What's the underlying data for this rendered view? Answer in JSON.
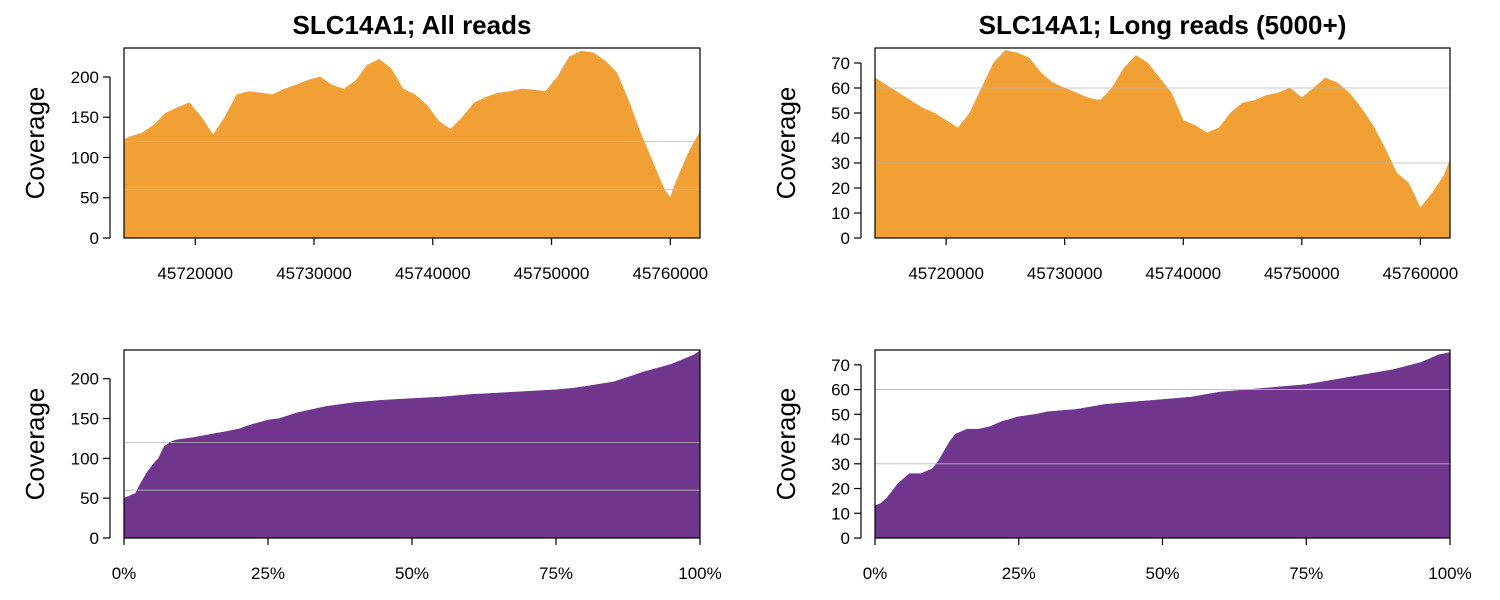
{
  "colors": {
    "coverage_area": "#F0A035",
    "sorted_area": "#70368D",
    "grid": "#b8b8b8"
  },
  "chart_data": [
    {
      "id": "top-left",
      "type": "area",
      "title": "SLC14A1; All reads",
      "ylabel": "Coverage",
      "xlabel": "",
      "xlim": [
        45714000,
        45762500
      ],
      "ylim": [
        0,
        236
      ],
      "x_ticks": [
        45720000,
        45730000,
        45740000,
        45750000,
        45760000
      ],
      "x_tick_labels": [
        "45720000",
        "45730000",
        "45740000",
        "45750000",
        "45760000"
      ],
      "y_ticks": [
        0,
        50,
        100,
        150,
        200
      ],
      "y_tick_labels": [
        "0",
        "50",
        "100",
        "150",
        "200"
      ],
      "gridlines_y": [
        60,
        120
      ],
      "color": "#F0A035",
      "x": [
        45714000,
        45714500,
        45715500,
        45716500,
        45717500,
        45718500,
        45719500,
        45720500,
        45721500,
        45722500,
        45723500,
        45724500,
        45725500,
        45726500,
        45727500,
        45728500,
        45729500,
        45730500,
        45731500,
        45732500,
        45733500,
        45734500,
        45735500,
        45736500,
        45737500,
        45738500,
        45739500,
        45740500,
        45741500,
        45742500,
        45743500,
        45744500,
        45745500,
        45746500,
        45747500,
        45748500,
        45749500,
        45750500,
        45751500,
        45752500,
        45753500,
        45754500,
        45755500,
        45756500,
        45757500,
        45758500,
        45759500,
        45760000,
        45760500,
        45761500,
        45762500
      ],
      "y": [
        122,
        126,
        130,
        140,
        155,
        162,
        168,
        150,
        128,
        150,
        178,
        182,
        180,
        178,
        185,
        190,
        196,
        200,
        190,
        185,
        195,
        215,
        222,
        210,
        185,
        178,
        165,
        145,
        135,
        150,
        168,
        175,
        180,
        182,
        185,
        184,
        182,
        200,
        225,
        232,
        230,
        220,
        205,
        170,
        130,
        95,
        60,
        50,
        70,
        105,
        132
      ]
    },
    {
      "id": "top-right",
      "type": "area",
      "title": "SLC14A1; Long reads (5000+)",
      "ylabel": "Coverage",
      "xlabel": "",
      "xlim": [
        45714000,
        45762500
      ],
      "ylim": [
        0,
        76
      ],
      "x_ticks": [
        45720000,
        45730000,
        45740000,
        45750000,
        45760000
      ],
      "x_tick_labels": [
        "45720000",
        "45730000",
        "45740000",
        "45750000",
        "45760000"
      ],
      "y_ticks": [
        0,
        10,
        20,
        30,
        40,
        50,
        60,
        70
      ],
      "y_tick_labels": [
        "0",
        "10",
        "20",
        "30",
        "40",
        "50",
        "60",
        "70"
      ],
      "gridlines_y": [
        30,
        60
      ],
      "color": "#F0A035",
      "x": [
        45714000,
        45715000,
        45716000,
        45717000,
        45718000,
        45719000,
        45720000,
        45721000,
        45722000,
        45723000,
        45724000,
        45725000,
        45726000,
        45727000,
        45728000,
        45729000,
        45730000,
        45731000,
        45732000,
        45733000,
        45734000,
        45735000,
        45736000,
        45737000,
        45738000,
        45739000,
        45740000,
        45741000,
        45742000,
        45743000,
        45744000,
        45745000,
        45746000,
        45747000,
        45748000,
        45749000,
        45750000,
        45751000,
        45752000,
        45753000,
        45754000,
        45755000,
        45756000,
        45757000,
        45758000,
        45759000,
        45760000,
        45761000,
        45762000,
        45762500
      ],
      "y": [
        64,
        61,
        58,
        55,
        52,
        50,
        47,
        44,
        50,
        60,
        70,
        75,
        74,
        72,
        66,
        62,
        60,
        58,
        56,
        55,
        60,
        68,
        73,
        70,
        64,
        58,
        47,
        45,
        42,
        44,
        50,
        54,
        55,
        57,
        58,
        60,
        56,
        60,
        64,
        62,
        58,
        52,
        45,
        36,
        26,
        22,
        12,
        18,
        25,
        31
      ]
    },
    {
      "id": "bottom-left",
      "type": "area",
      "title": "",
      "ylabel": "Coverage",
      "xlabel": "",
      "xlim": [
        0,
        100
      ],
      "ylim": [
        0,
        236
      ],
      "x_ticks": [
        0,
        25,
        50,
        75,
        100
      ],
      "x_tick_labels": [
        "0%",
        "25%",
        "50%",
        "75%",
        "100%"
      ],
      "y_ticks": [
        0,
        50,
        100,
        150,
        200
      ],
      "y_tick_labels": [
        "0",
        "50",
        "100",
        "150",
        "200"
      ],
      "gridlines_y": [
        60,
        120
      ],
      "color": "#70368D",
      "x": [
        0,
        1,
        2,
        3,
        4,
        5,
        6,
        7,
        8,
        9,
        10,
        12,
        15,
        18,
        20,
        22,
        25,
        27,
        30,
        35,
        40,
        45,
        50,
        55,
        60,
        65,
        70,
        75,
        78,
        80,
        85,
        88,
        90,
        93,
        95,
        97,
        99,
        100
      ],
      "y": [
        50,
        53,
        56,
        70,
        82,
        92,
        100,
        115,
        120,
        123,
        124,
        126,
        130,
        134,
        137,
        142,
        148,
        150,
        157,
        165,
        170,
        173,
        175,
        177,
        180,
        182,
        184,
        186,
        188,
        190,
        196,
        203,
        208,
        214,
        218,
        224,
        230,
        235
      ]
    },
    {
      "id": "bottom-right",
      "type": "area",
      "title": "",
      "ylabel": "Coverage",
      "xlabel": "",
      "xlim": [
        0,
        100
      ],
      "ylim": [
        0,
        76
      ],
      "x_ticks": [
        0,
        25,
        50,
        75,
        100
      ],
      "x_tick_labels": [
        "0%",
        "25%",
        "50%",
        "75%",
        "100%"
      ],
      "y_ticks": [
        0,
        10,
        20,
        30,
        40,
        50,
        60,
        70
      ],
      "y_tick_labels": [
        "0",
        "10",
        "20",
        "30",
        "40",
        "50",
        "60",
        "70"
      ],
      "gridlines_y": [
        30,
        60
      ],
      "color": "#70368D",
      "x": [
        0,
        1,
        2,
        3,
        4,
        5,
        6,
        7,
        8,
        9,
        10,
        11,
        12,
        13,
        14,
        15,
        16,
        18,
        20,
        22,
        25,
        28,
        30,
        35,
        40,
        45,
        50,
        55,
        60,
        65,
        70,
        75,
        80,
        85,
        90,
        95,
        98,
        100
      ],
      "y": [
        13,
        14,
        16,
        19,
        22,
        24,
        26,
        26,
        26,
        27,
        28,
        31,
        35,
        39,
        42,
        43,
        44,
        44,
        45,
        47,
        49,
        50,
        51,
        52,
        54,
        55,
        56,
        57,
        59,
        60,
        61,
        62,
        64,
        66,
        68,
        71,
        74,
        75
      ]
    }
  ]
}
